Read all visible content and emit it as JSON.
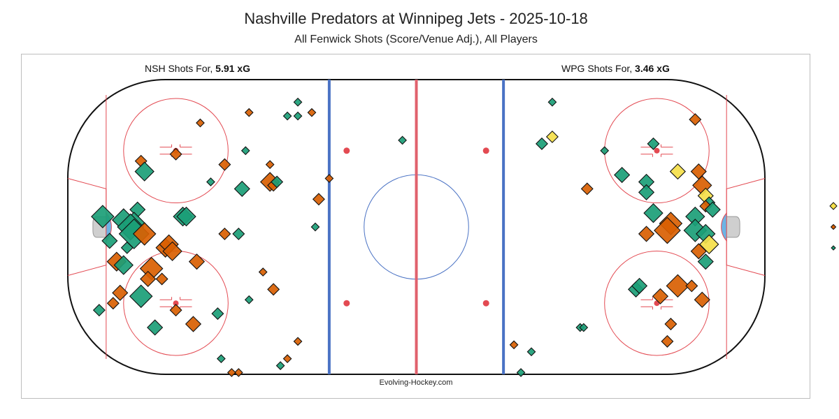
{
  "header": {
    "title": "Nashville Predators at Winnipeg Jets - 2025-10-18",
    "subtitle": "All Fenwick Shots (Score/Venue Adj.), All Players"
  },
  "labels": {
    "nsh_prefix": "NSH Shots For, ",
    "nsh_xg": "5.91 xG",
    "wpg_prefix": "WPG Shots For, ",
    "wpg_xg": "3.46 xG",
    "credit": "Evolving-Hockey.com"
  },
  "colors": {
    "goal_line": "#e34a52",
    "blue_line": "#4a72c4",
    "center_line": "#e0616d",
    "shot_green": "#1b9e77",
    "shot_orange": "#d95f02",
    "shot_yellow": "#f5e04a",
    "crease": "#6cb4e4"
  },
  "chart_data": {
    "type": "scatter",
    "title": "Nashville Predators at Winnipeg Jets - 2025-10-18",
    "subtitle": "All Fenwick Shots (Score/Venue Adj.), All Players",
    "x_range": [
      -100,
      100
    ],
    "y_range": [
      -42.5,
      42.5
    ],
    "x_unit": "feet (rink length, center ice = 0)",
    "y_unit": "feet (rink width, center ice = 0)",
    "legend": [
      {
        "color": "yellow",
        "placement": "right"
      },
      {
        "color": "orange",
        "placement": "right"
      },
      {
        "color": "green",
        "placement": "right"
      }
    ],
    "series": [
      {
        "name": "NSH Shots For",
        "xg_total": "5.91 xG",
        "points": [
          {
            "x": -34,
            "y": 36,
            "size": 1,
            "color": "green"
          },
          {
            "x": -37,
            "y": 32,
            "size": 1,
            "color": "green"
          },
          {
            "x": -34,
            "y": 32,
            "size": 1,
            "color": "green"
          },
          {
            "x": -62,
            "y": 30,
            "size": 1,
            "color": "orange"
          },
          {
            "x": -4,
            "y": 25,
            "size": 1,
            "color": "green"
          },
          {
            "x": -69,
            "y": 21,
            "size": 2,
            "color": "orange"
          },
          {
            "x": -55,
            "y": 18,
            "size": 2,
            "color": "orange"
          },
          {
            "x": -79,
            "y": 19,
            "size": 2,
            "color": "orange"
          },
          {
            "x": -78,
            "y": 16,
            "size": 4,
            "color": "green"
          },
          {
            "x": -42,
            "y": 13,
            "size": 4,
            "color": "orange"
          },
          {
            "x": -41,
            "y": 12,
            "size": 2,
            "color": "orange"
          },
          {
            "x": -40,
            "y": 13,
            "size": 2,
            "color": "green"
          },
          {
            "x": -50,
            "y": 11,
            "size": 3,
            "color": "green"
          },
          {
            "x": -28,
            "y": 8,
            "size": 2,
            "color": "orange"
          },
          {
            "x": -80,
            "y": 5,
            "size": 3,
            "color": "green"
          },
          {
            "x": -67,
            "y": 3,
            "size": 4,
            "color": "green"
          },
          {
            "x": -66,
            "y": 3,
            "size": 4,
            "color": "green"
          },
          {
            "x": -90,
            "y": 3,
            "size": 5,
            "color": "green"
          },
          {
            "x": -84,
            "y": 2,
            "size": 5,
            "color": "green"
          },
          {
            "x": -81,
            "y": 1,
            "size": 5,
            "color": "green"
          },
          {
            "x": -82,
            "y": 0,
            "size": 6,
            "color": "green"
          },
          {
            "x": -81,
            "y": -2,
            "size": 7,
            "color": "green"
          },
          {
            "x": -78,
            "y": -2,
            "size": 5,
            "color": "orange"
          },
          {
            "x": -29,
            "y": 0,
            "size": 1,
            "color": "green"
          },
          {
            "x": -55,
            "y": -2,
            "size": 2,
            "color": "orange"
          },
          {
            "x": -51,
            "y": -2,
            "size": 2,
            "color": "green"
          },
          {
            "x": -88,
            "y": -4,
            "size": 3,
            "color": "green"
          },
          {
            "x": -83,
            "y": -6,
            "size": 2,
            "color": "green"
          },
          {
            "x": -72,
            "y": -6,
            "size": 4,
            "color": "orange"
          },
          {
            "x": -71,
            "y": -5,
            "size": 4,
            "color": "orange"
          },
          {
            "x": -70,
            "y": -7,
            "size": 4,
            "color": "orange"
          },
          {
            "x": -63,
            "y": -10,
            "size": 3,
            "color": "orange"
          },
          {
            "x": -86,
            "y": -10,
            "size": 4,
            "color": "orange"
          },
          {
            "x": -84,
            "y": -11,
            "size": 4,
            "color": "green"
          },
          {
            "x": -76,
            "y": -12,
            "size": 5,
            "color": "orange"
          },
          {
            "x": -77,
            "y": -15,
            "size": 3,
            "color": "orange"
          },
          {
            "x": -73,
            "y": -15,
            "size": 2,
            "color": "orange"
          },
          {
            "x": -85,
            "y": -19,
            "size": 3,
            "color": "orange"
          },
          {
            "x": -79,
            "y": -20,
            "size": 5,
            "color": "green"
          },
          {
            "x": -41,
            "y": -18,
            "size": 2,
            "color": "orange"
          },
          {
            "x": -87,
            "y": -22,
            "size": 2,
            "color": "orange"
          },
          {
            "x": -91,
            "y": -24,
            "size": 2,
            "color": "green"
          },
          {
            "x": -48,
            "y": -21,
            "size": 1,
            "color": "green"
          },
          {
            "x": -69,
            "y": -24,
            "size": 2,
            "color": "orange"
          },
          {
            "x": -57,
            "y": -25,
            "size": 2,
            "color": "green"
          },
          {
            "x": -64,
            "y": -28,
            "size": 3,
            "color": "orange"
          },
          {
            "x": -75,
            "y": -29,
            "size": 3,
            "color": "green"
          },
          {
            "x": -34,
            "y": -33,
            "size": 1,
            "color": "orange"
          },
          {
            "x": -56,
            "y": -38,
            "size": 1,
            "color": "green"
          },
          {
            "x": -37,
            "y": -38,
            "size": 1,
            "color": "orange"
          },
          {
            "x": -39,
            "y": -40,
            "size": 1,
            "color": "green"
          },
          {
            "x": -51,
            "y": -42,
            "size": 1,
            "color": "orange"
          },
          {
            "x": -53,
            "y": -42,
            "size": 1,
            "color": "orange"
          }
        ]
      },
      {
        "name": "WPG Shots For",
        "xg_total": "3.46 xG",
        "points": [
          {
            "x": 39,
            "y": 36,
            "size": 1,
            "color": "green"
          },
          {
            "x": 80,
            "y": 31,
            "size": 2,
            "color": "orange"
          },
          {
            "x": 39,
            "y": 26,
            "size": 2,
            "color": "yellow"
          },
          {
            "x": 36,
            "y": 24,
            "size": 2,
            "color": "green"
          },
          {
            "x": 54,
            "y": 22,
            "size": 1,
            "color": "green"
          },
          {
            "x": 68,
            "y": 24,
            "size": 2,
            "color": "green"
          },
          {
            "x": 75,
            "y": 16,
            "size": 3,
            "color": "yellow"
          },
          {
            "x": 81,
            "y": 16,
            "size": 3,
            "color": "orange"
          },
          {
            "x": 59,
            "y": 15,
            "size": 3,
            "color": "green"
          },
          {
            "x": 66,
            "y": 13,
            "size": 3,
            "color": "green"
          },
          {
            "x": 82,
            "y": 12,
            "size": 4,
            "color": "orange"
          },
          {
            "x": 66,
            "y": 10,
            "size": 3,
            "color": "green"
          },
          {
            "x": 49,
            "y": 11,
            "size": 2,
            "color": "orange"
          },
          {
            "x": 83,
            "y": 9,
            "size": 3,
            "color": "yellow"
          },
          {
            "x": 84,
            "y": 7,
            "size": 2,
            "color": "green"
          },
          {
            "x": 83,
            "y": 6,
            "size": 2,
            "color": "orange"
          },
          {
            "x": 85,
            "y": 5,
            "size": 3,
            "color": "green"
          },
          {
            "x": 68,
            "y": 4,
            "size": 4,
            "color": "green"
          },
          {
            "x": 80,
            "y": 3,
            "size": 4,
            "color": "green"
          },
          {
            "x": 73,
            "y": 1,
            "size": 5,
            "color": "orange"
          },
          {
            "x": 72,
            "y": -1,
            "size": 6,
            "color": "orange"
          },
          {
            "x": 66,
            "y": -2,
            "size": 3,
            "color": "orange"
          },
          {
            "x": 80,
            "y": -1,
            "size": 5,
            "color": "green"
          },
          {
            "x": 83,
            "y": -2,
            "size": 4,
            "color": "green"
          },
          {
            "x": 84,
            "y": -5,
            "size": 4,
            "color": "yellow"
          },
          {
            "x": 81,
            "y": -7,
            "size": 3,
            "color": "orange"
          },
          {
            "x": 83,
            "y": -10,
            "size": 3,
            "color": "green"
          },
          {
            "x": 75,
            "y": -17,
            "size": 5,
            "color": "orange"
          },
          {
            "x": 79,
            "y": -17,
            "size": 2,
            "color": "orange"
          },
          {
            "x": 63,
            "y": -18,
            "size": 3,
            "color": "green"
          },
          {
            "x": 64,
            "y": -17,
            "size": 3,
            "color": "green"
          },
          {
            "x": 70,
            "y": -20,
            "size": 3,
            "color": "orange"
          },
          {
            "x": 82,
            "y": -21,
            "size": 3,
            "color": "orange"
          },
          {
            "x": 47,
            "y": -29,
            "size": 1,
            "color": "green"
          },
          {
            "x": 48,
            "y": -29,
            "size": 1,
            "color": "green"
          },
          {
            "x": 73,
            "y": -28,
            "size": 2,
            "color": "orange"
          },
          {
            "x": 72,
            "y": -33,
            "size": 2,
            "color": "orange"
          },
          {
            "x": 28,
            "y": -34,
            "size": 1,
            "color": "orange"
          },
          {
            "x": 33,
            "y": -36,
            "size": 1,
            "color": "green"
          },
          {
            "x": 30,
            "y": -42,
            "size": 1,
            "color": "green"
          },
          {
            "x": -48,
            "y": 33,
            "size": 1,
            "color": "orange"
          },
          {
            "x": -42,
            "y": 18,
            "size": 1,
            "color": "orange"
          },
          {
            "x": -49,
            "y": 22,
            "size": 1,
            "color": "green"
          },
          {
            "x": -25,
            "y": 14,
            "size": 1,
            "color": "orange"
          },
          {
            "x": -59,
            "y": 13,
            "size": 1,
            "color": "green"
          },
          {
            "x": -44,
            "y": -13,
            "size": 1,
            "color": "orange"
          },
          {
            "x": -30,
            "y": 33,
            "size": 1,
            "color": "orange"
          }
        ]
      }
    ]
  }
}
